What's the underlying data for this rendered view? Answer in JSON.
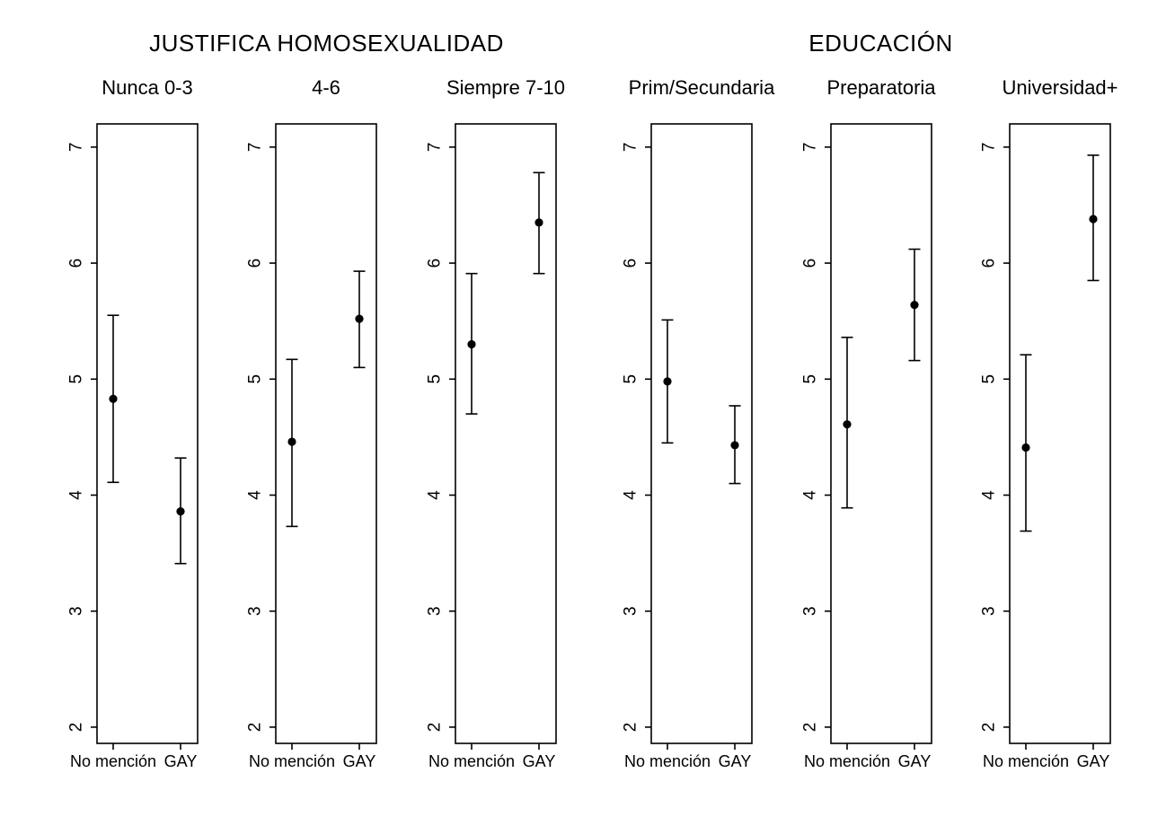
{
  "figure": {
    "background": "#ffffff",
    "ink_color": "#000000"
  },
  "chart_data": {
    "type": "scatter",
    "subtype": "dot-and-whisker point estimates with capped confidence-interval whiskers, 6 small-multiple panels in 2 groups",
    "group_titles": [
      "JUSTIFICA HOMOSEXUALIDAD",
      "EDUCACIÓN"
    ],
    "categories": [
      "No mención",
      "GAY"
    ],
    "y_axis": {
      "ticks": [
        2,
        3,
        4,
        5,
        6,
        7
      ],
      "range": [
        1.86,
        7.2
      ],
      "grid": false,
      "tick_label_rotation": "90deg counterclockwise"
    },
    "marker": "filled-black-circle",
    "error_bars": "capped vertical whiskers",
    "legend": "none",
    "panels": [
      {
        "group": "JUSTIFICA HOMOSEXUALIDAD",
        "label": "Nunca 0-3",
        "series": [
          {
            "category": "No mención",
            "value": 4.83,
            "ci_low": 4.11,
            "ci_high": 5.55
          },
          {
            "category": "GAY",
            "value": 3.86,
            "ci_low": 3.41,
            "ci_high": 4.32
          }
        ]
      },
      {
        "group": "JUSTIFICA HOMOSEXUALIDAD",
        "label": "4-6",
        "series": [
          {
            "category": "No mención",
            "value": 4.46,
            "ci_low": 3.73,
            "ci_high": 5.17
          },
          {
            "category": "GAY",
            "value": 5.52,
            "ci_low": 5.1,
            "ci_high": 5.93
          }
        ]
      },
      {
        "group": "JUSTIFICA HOMOSEXUALIDAD",
        "label": "Siempre 7-10",
        "series": [
          {
            "category": "No mención",
            "value": 5.3,
            "ci_low": 4.7,
            "ci_high": 5.91
          },
          {
            "category": "GAY",
            "value": 6.35,
            "ci_low": 5.91,
            "ci_high": 6.78
          }
        ]
      },
      {
        "group": "EDUCACIÓN",
        "label": "Prim/Secundaria",
        "series": [
          {
            "category": "No mención",
            "value": 4.98,
            "ci_low": 4.45,
            "ci_high": 5.51
          },
          {
            "category": "GAY",
            "value": 4.43,
            "ci_low": 4.1,
            "ci_high": 4.77
          }
        ]
      },
      {
        "group": "EDUCACIÓN",
        "label": "Preparatoria",
        "series": [
          {
            "category": "No mención",
            "value": 4.61,
            "ci_low": 3.89,
            "ci_high": 5.36
          },
          {
            "category": "GAY",
            "value": 5.64,
            "ci_low": 5.16,
            "ci_high": 6.12
          }
        ]
      },
      {
        "group": "EDUCACIÓN",
        "label": "Universidad+",
        "series": [
          {
            "category": "No mención",
            "value": 4.41,
            "ci_low": 3.69,
            "ci_high": 5.21
          },
          {
            "category": "GAY",
            "value": 6.38,
            "ci_low": 5.85,
            "ci_high": 6.93
          }
        ]
      }
    ]
  }
}
